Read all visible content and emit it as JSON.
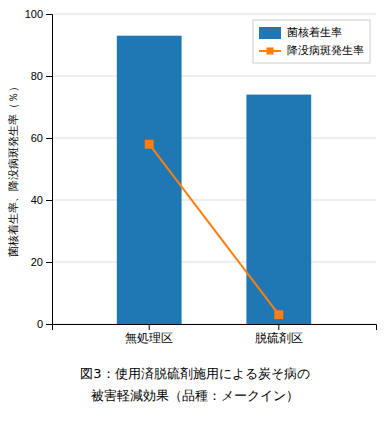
{
  "chart_data": {
    "type": "bar",
    "categories": [
      "無処理区",
      "脱硫剤区"
    ],
    "series": [
      {
        "name": "菌核着生率",
        "type": "bar",
        "values": [
          93,
          74
        ]
      },
      {
        "name": "降没病斑発生率",
        "type": "line",
        "marker": "square",
        "values": [
          58,
          3
        ]
      }
    ],
    "ylabel": "菌核着生率、降没病斑発生率（％）",
    "ylim": [
      0,
      100
    ],
    "yticks": [
      0,
      20,
      40,
      60,
      80,
      100
    ],
    "grid": true,
    "legend": "upper right",
    "annotations": [
      "図3：使用済脱硫剤施用による炭そ病の",
      "被害軽減効果（品種：メークイン）"
    ]
  }
}
